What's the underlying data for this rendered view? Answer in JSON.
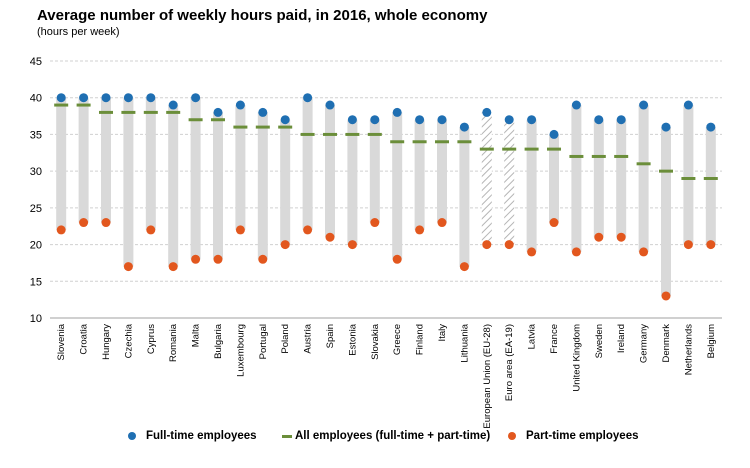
{
  "title": "Average number of weekly hours paid, in 2016, whole economy",
  "subtitle": "(hours per week)",
  "colors": {
    "full_time": "#1f6fb2",
    "part_time": "#e2571e",
    "all": "#6b8e3a",
    "range_bar": "#d9d9d9",
    "gridline": "#d0d0d0"
  },
  "legend": {
    "full_time": "Full-time employees",
    "all": "All employees (full-time + part-time)",
    "part_time": "Part-time employees"
  },
  "chart_data": {
    "type": "scatter",
    "title": "Average number of weekly hours paid, in 2016, whole economy",
    "subtitle": "(hours per week)",
    "ylim": [
      10,
      45
    ],
    "yticks": [
      10,
      15,
      20,
      25,
      30,
      35,
      40,
      45
    ],
    "grid": true,
    "legend_position": "bottom",
    "categories": [
      "Slovenia",
      "Croatia",
      "Hungary",
      "Czechia",
      "Cyprus",
      "Romania",
      "Malta",
      "Bulgaria",
      "Luxembourg",
      "Portugal",
      "Poland",
      "Austria",
      "Spain",
      "Estonia",
      "Slovakia",
      "Greece",
      "Finland",
      "Italy",
      "Lithuania",
      "European Union (EU-28)",
      "Euro area (EA-19)",
      "Latvia",
      "France",
      "United Kingdom",
      "Sweden",
      "Ireland",
      "Germany",
      "Denmark",
      "Netherlands",
      "Belgium"
    ],
    "hatched_categories": [
      "European Union (EU-28)",
      "Euro area (EA-19)"
    ],
    "series": [
      {
        "name": "Full-time employees",
        "marker": "dot",
        "values": [
          40,
          40,
          40,
          40,
          40,
          39,
          40,
          38,
          39,
          38,
          37,
          40,
          39,
          37,
          37,
          38,
          37,
          37,
          36,
          38,
          37,
          37,
          35,
          39,
          37,
          37,
          39,
          36,
          39,
          36
        ]
      },
      {
        "name": "All employees (full-time + part-time)",
        "marker": "dash",
        "values": [
          39,
          39,
          38,
          38,
          38,
          38,
          37,
          37,
          36,
          36,
          36,
          35,
          35,
          35,
          35,
          34,
          34,
          34,
          34,
          33,
          33,
          33,
          33,
          32,
          32,
          32,
          31,
          30,
          29,
          29
        ]
      },
      {
        "name": "Part-time employees",
        "marker": "dot",
        "values": [
          22,
          23,
          23,
          17,
          22,
          17,
          18,
          18,
          22,
          18,
          20,
          22,
          21,
          20,
          23,
          18,
          22,
          23,
          17,
          20,
          20,
          19,
          23,
          19,
          21,
          21,
          19,
          13,
          20,
          20
        ]
      }
    ]
  }
}
